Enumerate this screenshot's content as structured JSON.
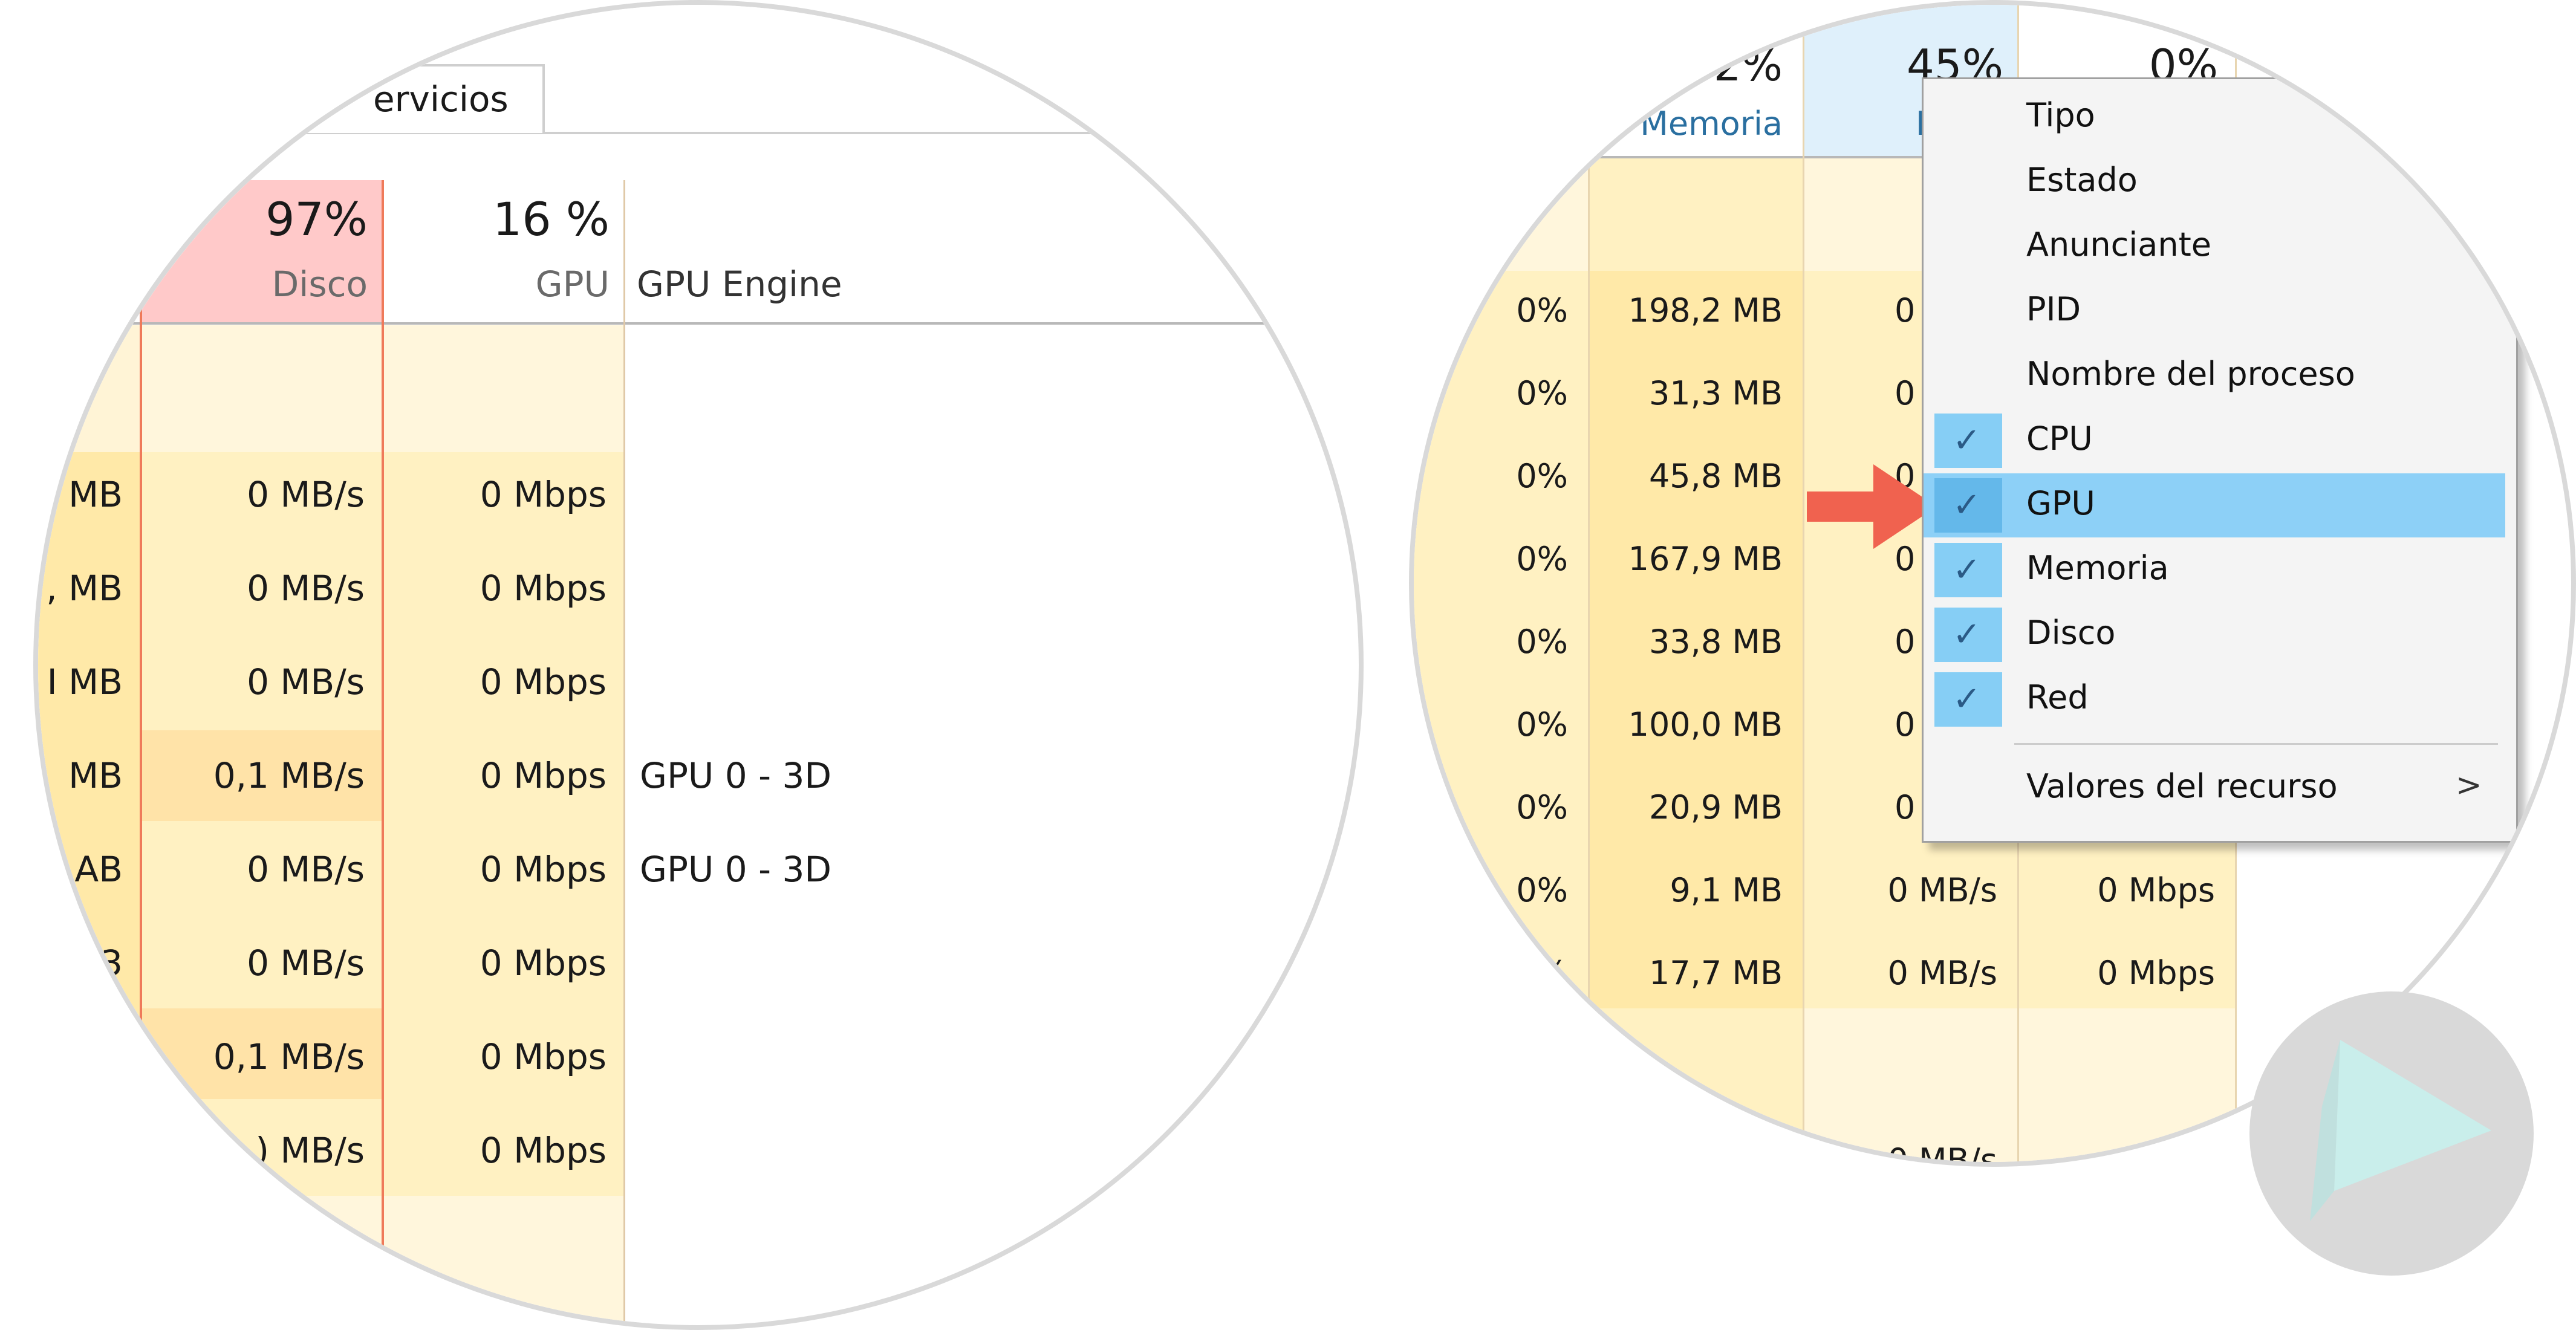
{
  "left_view": {
    "tab_services": "ervicios",
    "headers": [
      {
        "pct": "97%",
        "label": "Disco"
      },
      {
        "pct": "16 %",
        "label": "GPU"
      },
      {
        "pct": "",
        "label": "GPU Engine"
      }
    ],
    "rows": [
      {
        "mem": "MB",
        "disk": "0 MB/s",
        "gpu": "0 Mbps",
        "engine": ""
      },
      {
        "mem": ", MB",
        "disk": "0 MB/s",
        "gpu": "0 Mbps",
        "engine": ""
      },
      {
        "mem": "I MB",
        "disk": "0 MB/s",
        "gpu": "0 Mbps",
        "engine": ""
      },
      {
        "mem": "MB",
        "disk": "0,1 MB/s",
        "gpu": "0 Mbps",
        "engine": "GPU 0 - 3D"
      },
      {
        "mem": "AB",
        "disk": "0 MB/s",
        "gpu": "0 Mbps",
        "engine": "GPU 0 - 3D"
      },
      {
        "mem": "3",
        "disk": "0 MB/s",
        "gpu": "0 Mbps",
        "engine": ""
      },
      {
        "mem": "",
        "disk": "0,1 MB/s",
        "gpu": "0 Mbps",
        "engine": ""
      },
      {
        "mem": "",
        "disk": ") MB/s",
        "gpu": "0 Mbps",
        "engine": ""
      }
    ]
  },
  "right_view": {
    "headers": [
      {
        "pct": "2%",
        "label": "Memoria"
      },
      {
        "pct": "45%",
        "label": "I"
      },
      {
        "pct": "0%",
        "label": ""
      }
    ],
    "rows": [
      {
        "cpu": "0%",
        "mem": "198,2 MB",
        "disk": "0",
        "net": ""
      },
      {
        "cpu": "0%",
        "mem": "31,3 MB",
        "disk": "0",
        "net": ""
      },
      {
        "cpu": "0%",
        "mem": "45,8 MB",
        "disk": "0",
        "net": ""
      },
      {
        "cpu": "0%",
        "mem": "167,9 MB",
        "disk": "0",
        "net": ""
      },
      {
        "cpu": "0%",
        "mem": "33,8 MB",
        "disk": "0",
        "net": ""
      },
      {
        "cpu": "0%",
        "mem": "100,0 MB",
        "disk": "0",
        "net": ""
      },
      {
        "cpu": "0%",
        "mem": "20,9 MB",
        "disk": "0",
        "net": ""
      },
      {
        "cpu": "0%",
        "mem": "9,1 MB",
        "disk": "0 MB/s",
        "net": "0 Mbps"
      },
      {
        "cpu": "%",
        "mem": "17,7 MB",
        "disk": "0 MB/s",
        "net": "0 Mbps"
      }
    ],
    "bottom_partial": "0 MB/s",
    "context_menu": {
      "items": [
        {
          "label": "Tipo",
          "checked": false,
          "highlighted": false
        },
        {
          "label": "Estado",
          "checked": false,
          "highlighted": false
        },
        {
          "label": "Anunciante",
          "checked": false,
          "highlighted": false
        },
        {
          "label": "PID",
          "checked": false,
          "highlighted": false
        },
        {
          "label": "Nombre del proceso",
          "checked": false,
          "highlighted": false
        },
        {
          "label": "CPU",
          "checked": true,
          "highlighted": false
        },
        {
          "label": "GPU",
          "checked": true,
          "highlighted": true
        },
        {
          "label": "Memoria",
          "checked": true,
          "highlighted": false
        },
        {
          "label": "Disco",
          "checked": true,
          "highlighted": false
        },
        {
          "label": "Red",
          "checked": true,
          "highlighted": false
        }
      ],
      "submenu_label": "Valores del recurso",
      "submenu_arrow": ">"
    }
  },
  "icons": {
    "check": "✓",
    "pointer_arrow": "arrow-right-icon",
    "logo": "play-triangle-logo"
  },
  "colors": {
    "heat_light": "#fff4d6",
    "heat_medium": "#ffefb8",
    "heat_strong": "#ffe0a0",
    "disk_header": "#ffc9c9",
    "menu_highlight": "#8dd0f7",
    "arrow": "#f0624f",
    "logo_bg": "#d9d9d9",
    "logo_fg": "#c7f0ec"
  }
}
